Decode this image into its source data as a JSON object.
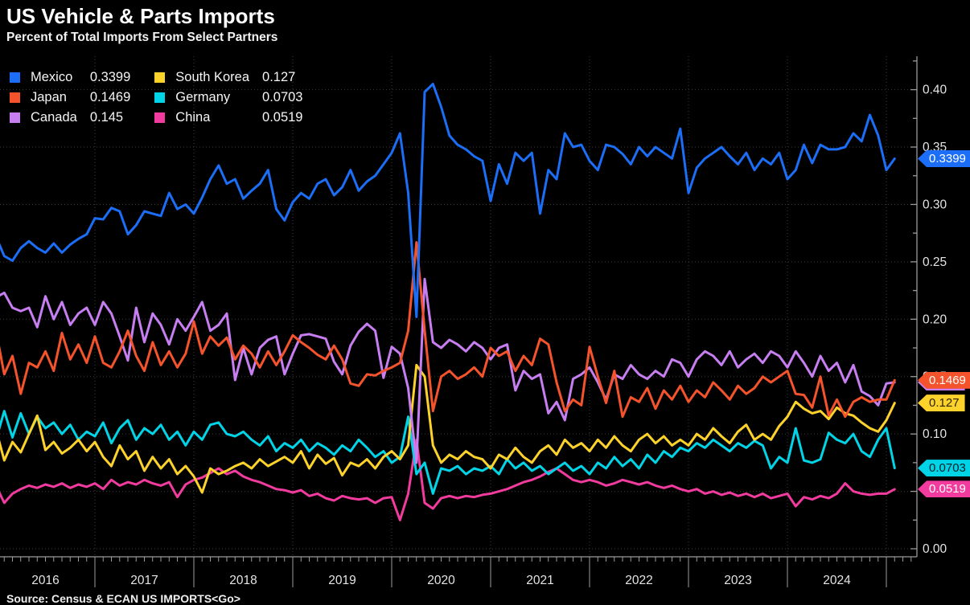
{
  "title": "US Vehicle & Parts Imports",
  "subtitle": "Percent of Total Imports From Select Partners",
  "source_line": "Source: Census & ECAN US IMPORTS<Go>",
  "colors": {
    "background": "#000000",
    "grid": "#3c3c3c",
    "axis": "#9b9b9b",
    "axis_text": "#e4e4e4"
  },
  "legend": {
    "items": [
      {
        "label": "Mexico",
        "value": "0.3399",
        "color": "#1b6ef5"
      },
      {
        "label": "Japan",
        "value": "0.1469",
        "color": "#f4532c"
      },
      {
        "label": "Canada",
        "value": "0.145",
        "color": "#c77ef0"
      },
      {
        "label": "South Korea",
        "value": "0.127",
        "color": "#fdd32b"
      },
      {
        "label": "Germany",
        "value": "0.0703",
        "color": "#00d4e6"
      },
      {
        "label": "China",
        "value": "0.0519",
        "color": "#f23b9e"
      }
    ]
  },
  "chart_data": {
    "type": "line",
    "title": "US Vehicle & Parts Imports",
    "subtitle": "Percent of Total Imports From Select Partners",
    "x_unit": "month",
    "x_start": "2016-01",
    "x_end": "2025-02",
    "x_year_labels": [
      "2016",
      "2017",
      "2018",
      "2019",
      "2020",
      "2021",
      "2022",
      "2023",
      "2024"
    ],
    "ylabel": "",
    "xlabel": "",
    "ylim": [
      0,
      0.425
    ],
    "ytick_step": 0.05,
    "ytick_labels": [
      "0.00",
      "0.05",
      "0.10",
      "0.15",
      "0.20",
      "0.25",
      "0.30",
      "0.35",
      "0.40"
    ],
    "grid": true,
    "legend_position": "top-left",
    "series": [
      {
        "name": "China",
        "color": "#f23b9e",
        "value_label": "0.0519",
        "tag_text_color": "#ffffff",
        "tag_z": 3,
        "values": [
          0.055,
          0.04,
          0.048,
          0.052,
          0.055,
          0.053,
          0.056,
          0.054,
          0.057,
          0.053,
          0.056,
          0.054,
          0.057,
          0.052,
          0.06,
          0.055,
          0.058,
          0.056,
          0.06,
          0.057,
          0.055,
          0.058,
          0.045,
          0.056,
          0.06,
          0.062,
          0.066,
          0.07,
          0.065,
          0.068,
          0.063,
          0.06,
          0.058,
          0.055,
          0.052,
          0.051,
          0.049,
          0.051,
          0.046,
          0.048,
          0.044,
          0.042,
          0.046,
          0.044,
          0.043,
          0.044,
          0.04,
          0.044,
          0.045,
          0.025,
          0.048,
          0.095,
          0.04,
          0.035,
          0.044,
          0.046,
          0.044,
          0.046,
          0.045,
          0.047,
          0.048,
          0.05,
          0.052,
          0.055,
          0.058,
          0.06,
          0.063,
          0.067,
          0.07,
          0.065,
          0.06,
          0.058,
          0.06,
          0.058,
          0.055,
          0.057,
          0.06,
          0.058,
          0.056,
          0.058,
          0.055,
          0.053,
          0.055,
          0.052,
          0.05,
          0.052,
          0.048,
          0.05,
          0.047,
          0.049,
          0.046,
          0.048,
          0.045,
          0.048,
          0.044,
          0.046,
          0.048,
          0.037,
          0.045,
          0.043,
          0.046,
          0.044,
          0.048,
          0.057,
          0.05,
          0.048,
          0.047,
          0.048,
          0.048,
          0.0519
        ]
      },
      {
        "name": "Germany",
        "color": "#00d4e6",
        "value_label": "0.0703",
        "tag_text_color": "#00222a",
        "tag_z": 3,
        "values": [
          0.095,
          0.12,
          0.097,
          0.118,
          0.1,
          0.115,
          0.105,
          0.11,
          0.1,
          0.108,
          0.095,
          0.102,
          0.098,
          0.11,
          0.092,
          0.105,
          0.112,
          0.095,
          0.105,
          0.1,
          0.108,
          0.095,
          0.102,
          0.09,
          0.102,
          0.095,
          0.108,
          0.11,
          0.1,
          0.098,
          0.102,
          0.095,
          0.09,
          0.098,
          0.085,
          0.092,
          0.088,
          0.095,
          0.085,
          0.092,
          0.088,
          0.082,
          0.09,
          0.085,
          0.095,
          0.088,
          0.08,
          0.085,
          0.075,
          0.08,
          0.115,
          0.065,
          0.075,
          0.048,
          0.07,
          0.068,
          0.072,
          0.065,
          0.07,
          0.068,
          0.072,
          0.065,
          0.078,
          0.07,
          0.075,
          0.068,
          0.072,
          0.065,
          0.07,
          0.075,
          0.068,
          0.072,
          0.065,
          0.075,
          0.07,
          0.08,
          0.072,
          0.078,
          0.07,
          0.082,
          0.075,
          0.085,
          0.08,
          0.088,
          0.085,
          0.092,
          0.088,
          0.095,
          0.09,
          0.085,
          0.092,
          0.088,
          0.094,
          0.09,
          0.07,
          0.08,
          0.075,
          0.105,
          0.077,
          0.075,
          0.078,
          0.101,
          0.095,
          0.092,
          0.1,
          0.085,
          0.08,
          0.095,
          0.105,
          0.0703
        ]
      },
      {
        "name": "South Korea",
        "color": "#fdd32b",
        "value_label": "0.127",
        "tag_text_color": "#2a2200",
        "tag_z": 3,
        "values": [
          0.104,
          0.077,
          0.093,
          0.084,
          0.1,
          0.116,
          0.086,
          0.093,
          0.083,
          0.088,
          0.095,
          0.085,
          0.093,
          0.08,
          0.072,
          0.09,
          0.078,
          0.085,
          0.068,
          0.08,
          0.07,
          0.078,
          0.065,
          0.072,
          0.063,
          0.049,
          0.07,
          0.065,
          0.068,
          0.072,
          0.075,
          0.07,
          0.078,
          0.072,
          0.076,
          0.08,
          0.075,
          0.085,
          0.07,
          0.082,
          0.074,
          0.079,
          0.064,
          0.075,
          0.072,
          0.078,
          0.07,
          0.08,
          0.085,
          0.078,
          0.09,
          0.16,
          0.15,
          0.09,
          0.075,
          0.082,
          0.078,
          0.085,
          0.08,
          0.078,
          0.07,
          0.082,
          0.078,
          0.088,
          0.08,
          0.075,
          0.085,
          0.09,
          0.082,
          0.095,
          0.088,
          0.092,
          0.085,
          0.095,
          0.088,
          0.098,
          0.09,
          0.085,
          0.095,
          0.1,
          0.092,
          0.098,
          0.09,
          0.095,
          0.09,
          0.1,
          0.095,
          0.105,
          0.098,
          0.092,
          0.102,
          0.108,
          0.095,
          0.1,
          0.095,
          0.107,
          0.115,
          0.128,
          0.122,
          0.118,
          0.12,
          0.113,
          0.123,
          0.118,
          0.116,
          0.11,
          0.105,
          0.102,
          0.112,
          0.127
        ]
      },
      {
        "name": "Canada",
        "color": "#c77ef0",
        "value_label": "0.145",
        "tag_text_color": "#1e0b2a",
        "tag_z": 2,
        "values": [
          0.219,
          0.223,
          0.21,
          0.207,
          0.21,
          0.193,
          0.22,
          0.2,
          0.215,
          0.195,
          0.205,
          0.21,
          0.195,
          0.215,
          0.205,
          0.185,
          0.164,
          0.21,
          0.18,
          0.205,
          0.195,
          0.178,
          0.2,
          0.19,
          0.202,
          0.215,
          0.19,
          0.195,
          0.205,
          0.147,
          0.175,
          0.152,
          0.175,
          0.182,
          0.185,
          0.152,
          0.17,
          0.186,
          0.187,
          0.185,
          0.183,
          0.163,
          0.152,
          0.177,
          0.189,
          0.196,
          0.19,
          0.149,
          0.176,
          0.17,
          0.14,
          0.075,
          0.235,
          0.18,
          0.175,
          0.182,
          0.178,
          0.172,
          0.18,
          0.175,
          0.165,
          0.175,
          0.178,
          0.138,
          0.155,
          0.148,
          0.152,
          0.118,
          0.128,
          0.112,
          0.148,
          0.152,
          0.158,
          0.145,
          0.13,
          0.152,
          0.148,
          0.16,
          0.152,
          0.148,
          0.155,
          0.15,
          0.165,
          0.162,
          0.15,
          0.165,
          0.172,
          0.168,
          0.16,
          0.172,
          0.158,
          0.165,
          0.17,
          0.162,
          0.172,
          0.168,
          0.158,
          0.172,
          0.162,
          0.15,
          0.168,
          0.155,
          0.162,
          0.145,
          0.16,
          0.137,
          0.133,
          0.125,
          0.144,
          0.145
        ]
      },
      {
        "name": "Japan",
        "color": "#f4532c",
        "value_label": "0.1469",
        "tag_text_color": "#ffffff",
        "tag_z": 3,
        "values": [
          0.19,
          0.152,
          0.168,
          0.135,
          0.162,
          0.158,
          0.172,
          0.155,
          0.188,
          0.165,
          0.178,
          0.162,
          0.185,
          0.162,
          0.158,
          0.172,
          0.19,
          0.168,
          0.155,
          0.18,
          0.16,
          0.172,
          0.158,
          0.17,
          0.198,
          0.17,
          0.185,
          0.177,
          0.184,
          0.165,
          0.177,
          0.17,
          0.158,
          0.172,
          0.16,
          0.172,
          0.186,
          0.18,
          0.175,
          0.169,
          0.165,
          0.177,
          0.165,
          0.144,
          0.142,
          0.152,
          0.151,
          0.155,
          0.158,
          0.162,
          0.19,
          0.267,
          0.19,
          0.12,
          0.15,
          0.155,
          0.148,
          0.152,
          0.158,
          0.15,
          0.175,
          0.168,
          0.172,
          0.155,
          0.168,
          0.16,
          0.183,
          0.178,
          0.145,
          0.12,
          0.13,
          0.125,
          0.176,
          0.15,
          0.127,
          0.155,
          0.115,
          0.132,
          0.128,
          0.14,
          0.122,
          0.138,
          0.13,
          0.142,
          0.128,
          0.138,
          0.132,
          0.145,
          0.138,
          0.13,
          0.142,
          0.135,
          0.14,
          0.15,
          0.145,
          0.15,
          0.155,
          0.135,
          0.134,
          0.123,
          0.15,
          0.116,
          0.13,
          0.115,
          0.128,
          0.132,
          0.128,
          0.13,
          0.13,
          0.1469
        ]
      },
      {
        "name": "Mexico",
        "color": "#1b6ef5",
        "value_label": "0.3399",
        "tag_text_color": "#ffffff",
        "tag_z": 3,
        "values": [
          0.272,
          0.255,
          0.251,
          0.262,
          0.268,
          0.262,
          0.258,
          0.266,
          0.258,
          0.265,
          0.27,
          0.274,
          0.288,
          0.287,
          0.297,
          0.294,
          0.274,
          0.282,
          0.294,
          0.292,
          0.29,
          0.31,
          0.296,
          0.3,
          0.292,
          0.306,
          0.322,
          0.334,
          0.318,
          0.322,
          0.305,
          0.312,
          0.318,
          0.33,
          0.296,
          0.286,
          0.302,
          0.31,
          0.305,
          0.318,
          0.322,
          0.308,
          0.315,
          0.33,
          0.312,
          0.32,
          0.325,
          0.335,
          0.345,
          0.362,
          0.31,
          0.202,
          0.398,
          0.405,
          0.385,
          0.36,
          0.352,
          0.348,
          0.342,
          0.338,
          0.303,
          0.335,
          0.318,
          0.345,
          0.338,
          0.345,
          0.292,
          0.33,
          0.322,
          0.362,
          0.35,
          0.352,
          0.338,
          0.33,
          0.352,
          0.35,
          0.344,
          0.335,
          0.35,
          0.342,
          0.35,
          0.345,
          0.34,
          0.366,
          0.31,
          0.332,
          0.34,
          0.345,
          0.35,
          0.342,
          0.335,
          0.345,
          0.33,
          0.34,
          0.335,
          0.345,
          0.322,
          0.33,
          0.352,
          0.336,
          0.352,
          0.348,
          0.348,
          0.35,
          0.362,
          0.355,
          0.378,
          0.36,
          0.33,
          0.3399
        ]
      }
    ]
  }
}
